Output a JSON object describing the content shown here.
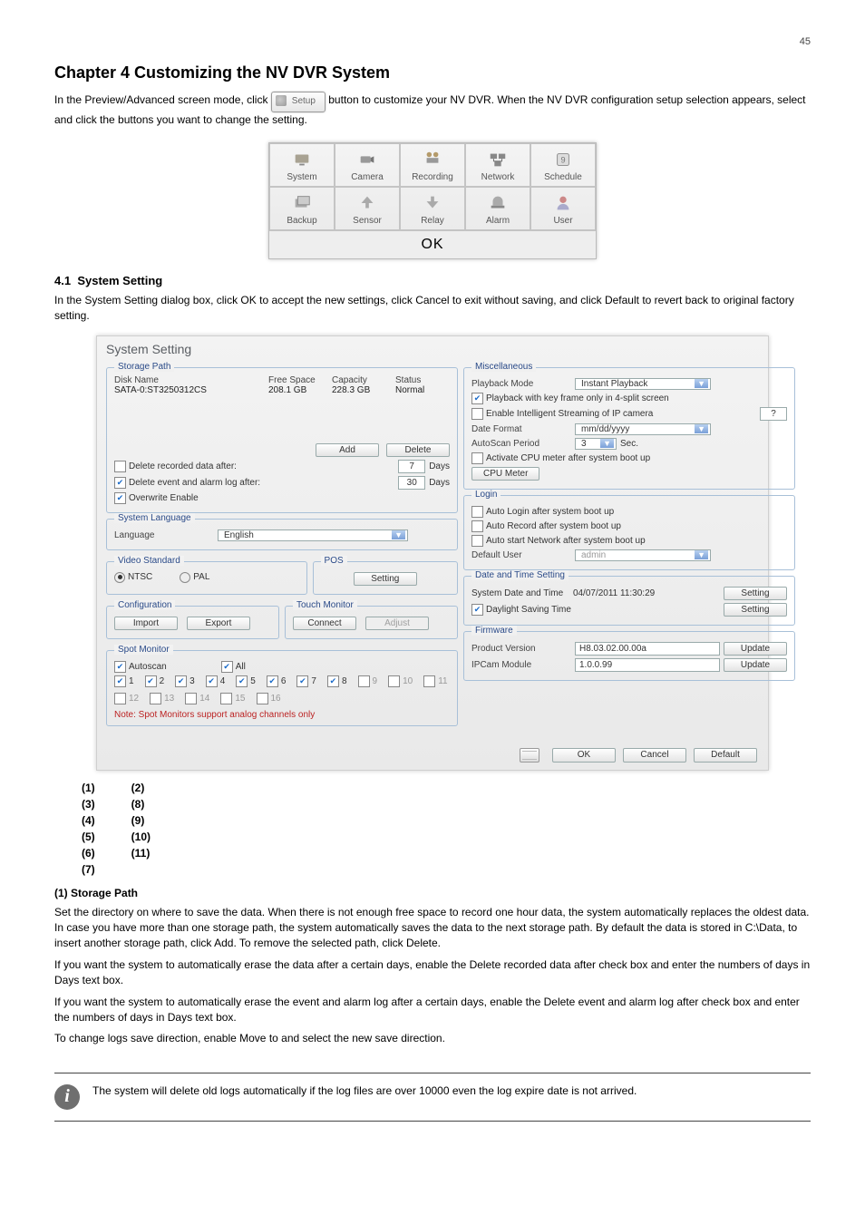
{
  "page_number": "45",
  "chapter_title": "Chapter 4 Customizing the NV DVR System",
  "chapter_intro": "In the Preview/Advanced screen mode, click button to customize your NV DVR. When the NV DVR configuration setup selection appears, select and click the buttons you want to change the setting.",
  "setup_btn_label": "Setup",
  "menu": {
    "row1": [
      "System",
      "Camera",
      "Recording",
      "Network",
      "Schedule"
    ],
    "row2": [
      "Backup",
      "Sensor",
      "Relay",
      "Alarm",
      "User"
    ],
    "ok": "OK"
  },
  "sec": {
    "num": "4.1",
    "title": "System Setting",
    "intro": "In the System Setting dialog box, click OK to accept the new settings, click Cancel to exit without saving, and click Default to revert back to original factory setting."
  },
  "syswin": {
    "title": "System Setting",
    "storage": {
      "legend": "Storage Path",
      "cols": {
        "disk": "Disk Name",
        "free": "Free Space",
        "cap": "Capacity",
        "status": "Status"
      },
      "row": {
        "disk": "SATA-0:ST3250312CS",
        "free": "208.1 GB",
        "cap": "228.3 GB",
        "status": "Normal"
      },
      "add": "Add",
      "delete": "Delete",
      "del_rec": "Delete recorded data after:",
      "del_rec_val": "7",
      "days": "Days",
      "del_evt": "Delete event and alarm log after:",
      "del_evt_val": "30",
      "overwrite": "Overwrite Enable"
    },
    "lang": {
      "legend": "System Language",
      "label": "Language",
      "value": "English"
    },
    "vid": {
      "legend": "Video Standard",
      "ntsc": "NTSC",
      "pal": "PAL"
    },
    "pos": {
      "legend": "POS",
      "setting": "Setting"
    },
    "cfg": {
      "legend": "Configuration",
      "import": "Import",
      "export": "Export"
    },
    "touch": {
      "legend": "Touch Monitor",
      "connect": "Connect",
      "adjust": "Adjust"
    },
    "spot": {
      "legend": "Spot Monitor",
      "autoscan": "Autoscan",
      "all": "All",
      "nums": [
        "1",
        "2",
        "3",
        "4",
        "5",
        "6",
        "7",
        "8",
        "9",
        "10",
        "11",
        "12",
        "13",
        "14",
        "15",
        "16"
      ],
      "active": [
        true,
        true,
        true,
        true,
        true,
        true,
        true,
        true,
        false,
        false,
        false,
        false,
        false,
        false,
        false,
        false
      ],
      "note": "Note: Spot Monitors support analog channels only"
    },
    "misc": {
      "legend": "Miscellaneous",
      "playback_mode": "Playback Mode",
      "playback_val": "Instant Playback",
      "keyframe": "Playback with key frame only in 4-split screen",
      "intel": "Enable Intelligent Streaming of IP camera",
      "help": "?",
      "date_format": "Date Format",
      "date_val": "mm/dd/yyyy",
      "autoscan_period": "AutoScan Period",
      "autoscan_val": "3",
      "sec": "Sec.",
      "cpu_act": "Activate CPU meter after system boot up",
      "cpu_btn": "CPU Meter"
    },
    "login": {
      "legend": "Login",
      "auto_login": "Auto Login after system boot up",
      "auto_rec": "Auto Record after system boot up",
      "auto_net": "Auto start Network after system boot up",
      "def_user": "Default User",
      "def_user_val": "admin"
    },
    "dt": {
      "legend": "Date and Time Setting",
      "sys_dt": "System Date and Time",
      "sys_dt_val": "04/07/2011  11:30:29",
      "setting": "Setting",
      "dst": "Daylight Saving Time"
    },
    "fw": {
      "legend": "Firmware",
      "pv": "Product Version",
      "pv_val": "H8.03.02.00.00a",
      "update": "Update",
      "ip": "IPCam Module",
      "ip_val": "1.0.0.99"
    },
    "btns": {
      "ok": "OK",
      "cancel": "Cancel",
      "default": "Default"
    }
  },
  "callouts": [
    [
      "(1)",
      "(3)",
      "(4)",
      "(5)",
      "(6)",
      "(7)"
    ],
    [
      "(2)",
      "(8)",
      "(9)",
      "(10)",
      "(11)"
    ]
  ],
  "feat": {
    "title": "(1) Storage Path",
    "body1": "Set the directory on where to save the data. When there is not enough free space to record one hour data, the system automatically replaces the oldest data. In case you have more than one storage path, the system automatically saves the data to the next storage path. By default the data is stored in C:\\Data, to insert another storage path, click Add. To remove the selected path, click Delete.",
    "body2": "If you want the system to automatically erase the data after a certain days, enable the Delete recorded data after check box and enter the numbers of days in Days text box.",
    "body3": "If you want the system to automatically erase the event and alarm log after a certain days, enable the Delete event and alarm log after check box and enter the numbers of days in Days text box.",
    "body4": "To change logs save direction, enable Move to and select the new save direction."
  },
  "info": "The system will delete old logs automatically if the log files are over 10000 even the log expire date is not arrived."
}
